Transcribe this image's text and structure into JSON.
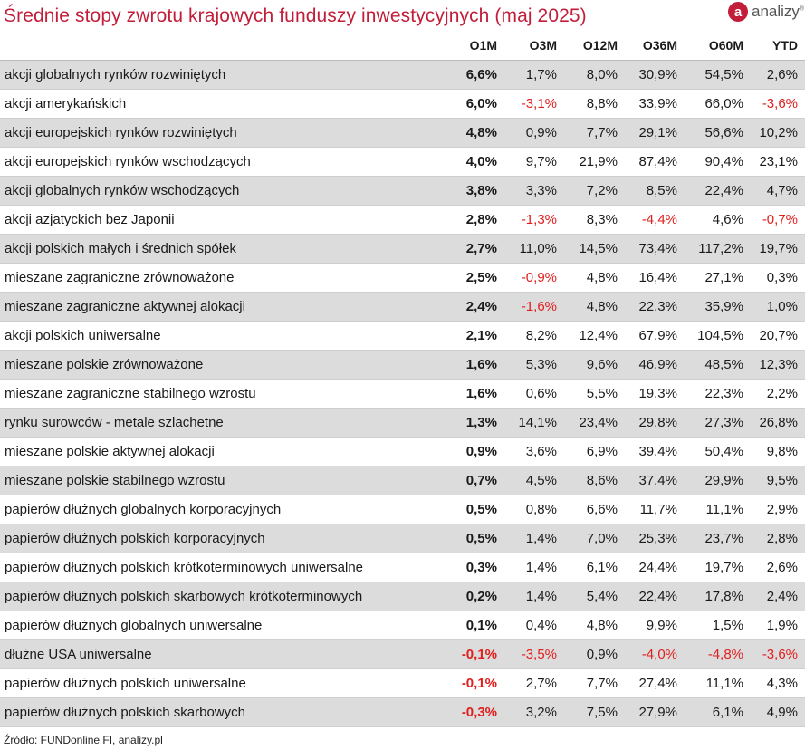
{
  "title": "Średnie stopy zwrotu krajowych funduszy inwestycyjnych (maj 2025)",
  "logo": {
    "mark": "a",
    "text": "analizy"
  },
  "source": "Źródło: FUNDonline FI, analizy.pl",
  "colors": {
    "title": "#c21e3a",
    "negative": "#e0201e",
    "row_shade": "#dcdcdc"
  },
  "chart_data": {
    "type": "table",
    "columns": [
      "O1M",
      "O3M",
      "O12M",
      "O36M",
      "O60M",
      "YTD"
    ],
    "rows": [
      {
        "name": "akcji globalnych rynków rozwiniętych",
        "values": [
          "6,6%",
          "1,7%",
          "8,0%",
          "30,9%",
          "54,5%",
          "2,6%"
        ]
      },
      {
        "name": "akcji amerykańskich",
        "values": [
          "6,0%",
          "-3,1%",
          "8,8%",
          "33,9%",
          "66,0%",
          "-3,6%"
        ]
      },
      {
        "name": "akcji europejskich rynków rozwiniętych",
        "values": [
          "4,8%",
          "0,9%",
          "7,7%",
          "29,1%",
          "56,6%",
          "10,2%"
        ]
      },
      {
        "name": "akcji europejskich rynków wschodzących",
        "values": [
          "4,0%",
          "9,7%",
          "21,9%",
          "87,4%",
          "90,4%",
          "23,1%"
        ]
      },
      {
        "name": "akcji globalnych rynków wschodzących",
        "values": [
          "3,8%",
          "3,3%",
          "7,2%",
          "8,5%",
          "22,4%",
          "4,7%"
        ]
      },
      {
        "name": "akcji azjatyckich bez Japonii",
        "values": [
          "2,8%",
          "-1,3%",
          "8,3%",
          "-4,4%",
          "4,6%",
          "-0,7%"
        ]
      },
      {
        "name": "akcji polskich małych i średnich spółek",
        "values": [
          "2,7%",
          "11,0%",
          "14,5%",
          "73,4%",
          "117,2%",
          "19,7%"
        ]
      },
      {
        "name": "mieszane zagraniczne zrównoważone",
        "values": [
          "2,5%",
          "-0,9%",
          "4,8%",
          "16,4%",
          "27,1%",
          "0,3%"
        ]
      },
      {
        "name": "mieszane zagraniczne aktywnej alokacji",
        "values": [
          "2,4%",
          "-1,6%",
          "4,8%",
          "22,3%",
          "35,9%",
          "1,0%"
        ]
      },
      {
        "name": "akcji polskich uniwersalne",
        "values": [
          "2,1%",
          "8,2%",
          "12,4%",
          "67,9%",
          "104,5%",
          "20,7%"
        ]
      },
      {
        "name": "mieszane polskie zrównoważone",
        "values": [
          "1,6%",
          "5,3%",
          "9,6%",
          "46,9%",
          "48,5%",
          "12,3%"
        ]
      },
      {
        "name": "mieszane zagraniczne stabilnego wzrostu",
        "values": [
          "1,6%",
          "0,6%",
          "5,5%",
          "19,3%",
          "22,3%",
          "2,2%"
        ]
      },
      {
        "name": "rynku surowców - metale szlachetne",
        "values": [
          "1,3%",
          "14,1%",
          "23,4%",
          "29,8%",
          "27,3%",
          "26,8%"
        ]
      },
      {
        "name": "mieszane polskie aktywnej alokacji",
        "values": [
          "0,9%",
          "3,6%",
          "6,9%",
          "39,4%",
          "50,4%",
          "9,8%"
        ]
      },
      {
        "name": "mieszane polskie stabilnego wzrostu",
        "values": [
          "0,7%",
          "4,5%",
          "8,6%",
          "37,4%",
          "29,9%",
          "9,5%"
        ]
      },
      {
        "name": "papierów dłużnych globalnych korporacyjnych",
        "values": [
          "0,5%",
          "0,8%",
          "6,6%",
          "11,7%",
          "11,1%",
          "2,9%"
        ]
      },
      {
        "name": "papierów dłużnych polskich korporacyjnych",
        "values": [
          "0,5%",
          "1,4%",
          "7,0%",
          "25,3%",
          "23,7%",
          "2,8%"
        ]
      },
      {
        "name": "papierów dłużnych polskich krótkoterminowych uniwersalne",
        "values": [
          "0,3%",
          "1,4%",
          "6,1%",
          "24,4%",
          "19,7%",
          "2,6%"
        ]
      },
      {
        "name": "papierów dłużnych polskich skarbowych krótkoterminowych",
        "values": [
          "0,2%",
          "1,4%",
          "5,4%",
          "22,4%",
          "17,8%",
          "2,4%"
        ]
      },
      {
        "name": "papierów dłużnych globalnych uniwersalne",
        "values": [
          "0,1%",
          "0,4%",
          "4,8%",
          "9,9%",
          "1,5%",
          "1,9%"
        ]
      },
      {
        "name": "dłużne USA uniwersalne",
        "values": [
          "-0,1%",
          "-3,5%",
          "0,9%",
          "-4,0%",
          "-4,8%",
          "-3,6%"
        ]
      },
      {
        "name": "papierów dłużnych polskich uniwersalne",
        "values": [
          "-0,1%",
          "2,7%",
          "7,7%",
          "27,4%",
          "11,1%",
          "4,3%"
        ]
      },
      {
        "name": "papierów dłużnych polskich skarbowych",
        "values": [
          "-0,3%",
          "3,2%",
          "7,5%",
          "27,9%",
          "6,1%",
          "4,9%"
        ]
      }
    ]
  }
}
